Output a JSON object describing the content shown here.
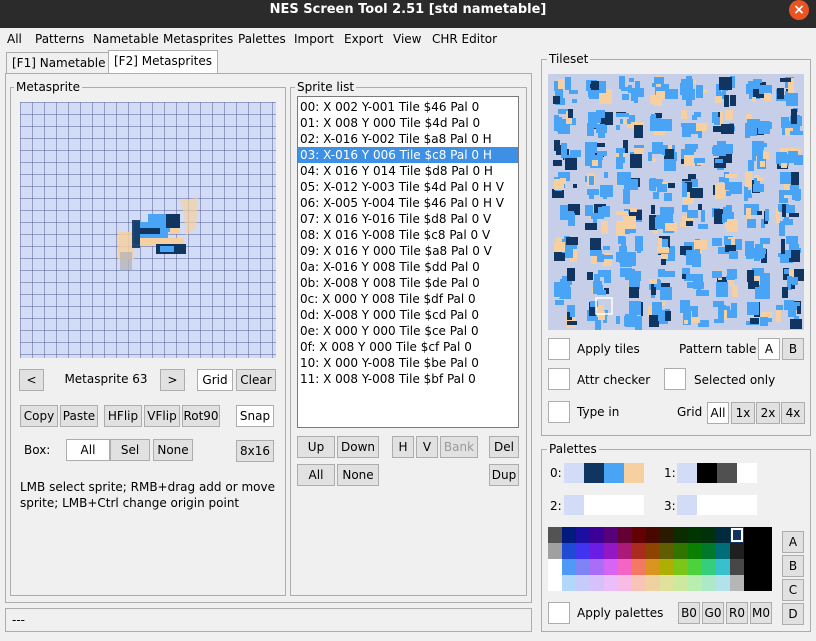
{
  "window": {
    "title": "NES Screen Tool 2.51  [std nametable]"
  },
  "menu": [
    "All",
    "Patterns",
    "Nametable",
    "Metasprites",
    "Palettes",
    "Import",
    "Export",
    "View",
    "CHR Editor"
  ],
  "tabs": [
    "[F1] Nametable",
    "[F2] Metasprites"
  ],
  "metasprite": {
    "group_title": "Metasprite",
    "prev_label": "<",
    "name": "Metasprite 63",
    "next_label": ">",
    "grid_label": "Grid",
    "clear_label": "Clear",
    "copy_label": "Copy",
    "paste_label": "Paste",
    "hflip_label": "HFlip",
    "vflip_label": "VFlip",
    "rot90_label": "Rot90",
    "snap_label": "Snap",
    "box_label": "Box:",
    "box_all": "All",
    "box_sel": "Sel",
    "box_none": "None",
    "size_label": "8x16",
    "help_text": "LMB select sprite; RMB+drag add or move sprite; LMB+Ctrl change origin point"
  },
  "sprite_list": {
    "group_title": "Sprite list",
    "rows": [
      "00: X 002 Y-001 Tile $46 Pal 0",
      "01: X 008 Y 000 Tile $4d Pal 0",
      "02: X-016 Y-002 Tile $a8 Pal 0 H",
      "03: X-016 Y 006 Tile $c8 Pal 0 H",
      "04: X 016 Y 014 Tile $d8 Pal 0 H",
      "05: X-012 Y-003 Tile $4d Pal 0 H V",
      "06: X-005 Y-004 Tile $46 Pal 0 H V",
      "07: X 016 Y-016 Tile $d8 Pal 0 V",
      "08: X 016 Y-008 Tile $c8 Pal 0 V",
      "09: X 016 Y 000 Tile $a8 Pal 0 V",
      "0a: X-016 Y 008 Tile $dd Pal 0",
      "0b: X-008 Y 008 Tile $de Pal 0",
      "0c: X 000 Y 008 Tile $df Pal 0",
      "0d: X-008 Y 000 Tile $cd Pal 0",
      "0e: X 000 Y 000 Tile $ce Pal 0",
      "0f: X 008 Y 000 Tile $cf Pal 0",
      "10: X 000 Y-008 Tile $be Pal 0",
      "11: X 008 Y-008 Tile $bf Pal 0"
    ],
    "selected_index": 3,
    "up_label": "Up",
    "down_label": "Down",
    "h_label": "H",
    "v_label": "V",
    "bank_label": "Bank",
    "del_label": "Del",
    "all_label": "All",
    "none_label": "None",
    "dup_label": "Dup"
  },
  "tileset": {
    "group_title": "Tileset",
    "apply_tiles_label": "Apply tiles",
    "pattern_table_label": "Pattern table",
    "pt_a": "A",
    "pt_b": "B",
    "attr_checker_label": "Attr checker",
    "selected_only_label": "Selected only",
    "type_in_label": "Type in",
    "grid_label": "Grid",
    "grid_all": "All",
    "grid_1x": "1x",
    "grid_2x": "2x",
    "grid_4x": "4x"
  },
  "palettes": {
    "group_title": "Palettes",
    "p0_label": "0:",
    "p1_label": "1:",
    "p2_label": "2:",
    "p3_label": "3:",
    "p0_colors": [
      "#d2dcf6",
      "#0f3560",
      "#4aa4f6",
      "#f6d0a0"
    ],
    "p1_colors": [
      "#d2dcf6",
      "#000000",
      "#505050",
      "#ffffff"
    ],
    "p2_colors": [
      "#d2dcf6",
      "#ffffff",
      "#ffffff",
      "#ffffff"
    ],
    "p3_colors": [
      "#d2dcf6",
      "#ffffff",
      "#ffffff",
      "#ffffff"
    ],
    "master": [
      [
        "#535353",
        "#011a7e",
        "#1d0ea2",
        "#3c0098",
        "#580079",
        "#650034",
        "#620004",
        "#480800",
        "#2a1a00",
        "#0c2c00",
        "#003400",
        "#00310a",
        "#002b3d",
        "#0f3560",
        "#000000",
        "#000000"
      ],
      [
        "#a0a0a0",
        "#1e4ad4",
        "#4034f0",
        "#6b1de6",
        "#9417c6",
        "#ab1a79",
        "#aa2c1e",
        "#8c4400",
        "#5f5e00",
        "#317500",
        "#0b7f00",
        "#007a2a",
        "#006e78",
        "#1f1f1f",
        "#000000",
        "#000000"
      ],
      [
        "#ffffff",
        "#4e9af6",
        "#7e83f6",
        "#a96df6",
        "#d665f6",
        "#f364c4",
        "#f47964",
        "#d99520",
        "#adaf04",
        "#7bc618",
        "#4cd23a",
        "#35ce7a",
        "#38c0cc",
        "#474747",
        "#000000",
        "#000000"
      ],
      [
        "#ffffff",
        "#b3d6fb",
        "#c5cbfb",
        "#d7c1fb",
        "#ebbdfb",
        "#f8bbe5",
        "#f9c4b7",
        "#eed2a1",
        "#e0e19a",
        "#cbea9f",
        "#b9eeae",
        "#ade8c8",
        "#b2e2ea",
        "#b6b6b6",
        "#000000",
        "#000000"
      ]
    ],
    "side_a": "A",
    "side_b": "B",
    "side_c": "C",
    "side_d": "D",
    "apply_palettes_label": "Apply palettes",
    "b0": "B0",
    "g0": "G0",
    "r0": "R0",
    "m0": "M0"
  },
  "status": {
    "text": "---"
  }
}
